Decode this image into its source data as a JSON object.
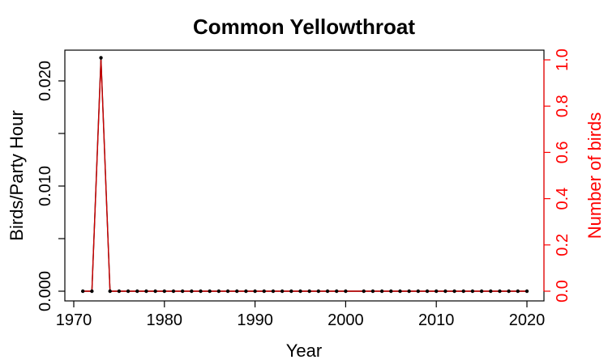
{
  "chart_data": {
    "type": "line",
    "title": "Common Yellowthroat",
    "xlabel": "Year",
    "ylabel": "Birds/Party Hour",
    "ylabel_right": "Number of birds",
    "xlim": [
      1970,
      2020
    ],
    "ylim": [
      0,
      0.022
    ],
    "ylim_right": [
      0,
      1.0
    ],
    "x_ticks": [
      "1970",
      "1980",
      "1990",
      "2000",
      "2010",
      "2020"
    ],
    "y_ticks": [
      "0.000",
      "0.010",
      "0.020"
    ],
    "y_ticks_right": [
      "0.0",
      "0.2",
      "0.4",
      "0.6",
      "0.8",
      "1.0"
    ],
    "grid": false,
    "colors": {
      "primary": "#000000",
      "secondary": "#cc0000",
      "right_axis": "#ff0000"
    },
    "series": [
      {
        "axis": "left",
        "x": [
          1971,
          1972,
          1973,
          1974,
          1975,
          1976,
          1977,
          1978,
          1979,
          1980,
          1981,
          1982,
          1983,
          1984,
          1985,
          1986,
          1987,
          1988,
          1989,
          1990,
          1991,
          1992,
          1993,
          1994,
          1995,
          1996,
          1997,
          1998,
          1999,
          2000,
          2002,
          2003,
          2004,
          2005,
          2006,
          2007,
          2008,
          2009,
          2010,
          2011,
          2012,
          2013,
          2014,
          2015,
          2016,
          2017,
          2018,
          2019,
          2020
        ],
        "values": [
          0,
          0,
          0.0222,
          0,
          0,
          0,
          0,
          0,
          0,
          0,
          0,
          0,
          0,
          0,
          0,
          0,
          0,
          0,
          0,
          0,
          0,
          0,
          0,
          0,
          0,
          0,
          0,
          0,
          0,
          0,
          0,
          0,
          0,
          0,
          0,
          0,
          0,
          0,
          0,
          0,
          0,
          0,
          0,
          0,
          0,
          0,
          0,
          0,
          0
        ]
      },
      {
        "axis": "right",
        "x": [
          1971,
          1972,
          1973,
          1974,
          1975,
          1976,
          1977,
          1978,
          1979,
          1980,
          1981,
          1982,
          1983,
          1984,
          1985,
          1986,
          1987,
          1988,
          1989,
          1990,
          1991,
          1992,
          1993,
          1994,
          1995,
          1996,
          1997,
          1998,
          1999,
          2000,
          2002,
          2003,
          2004,
          2005,
          2006,
          2007,
          2008,
          2009,
          2010,
          2011,
          2012,
          2013,
          2014,
          2015,
          2016,
          2017,
          2018,
          2019,
          2020
        ],
        "values": [
          0,
          0,
          1,
          0,
          0,
          0,
          0,
          0,
          0,
          0,
          0,
          0,
          0,
          0,
          0,
          0,
          0,
          0,
          0,
          0,
          0,
          0,
          0,
          0,
          0,
          0,
          0,
          0,
          0,
          0,
          0,
          0,
          0,
          0,
          0,
          0,
          0,
          0,
          0,
          0,
          0,
          0,
          0,
          0,
          0,
          0,
          0,
          0,
          0
        ]
      }
    ]
  }
}
